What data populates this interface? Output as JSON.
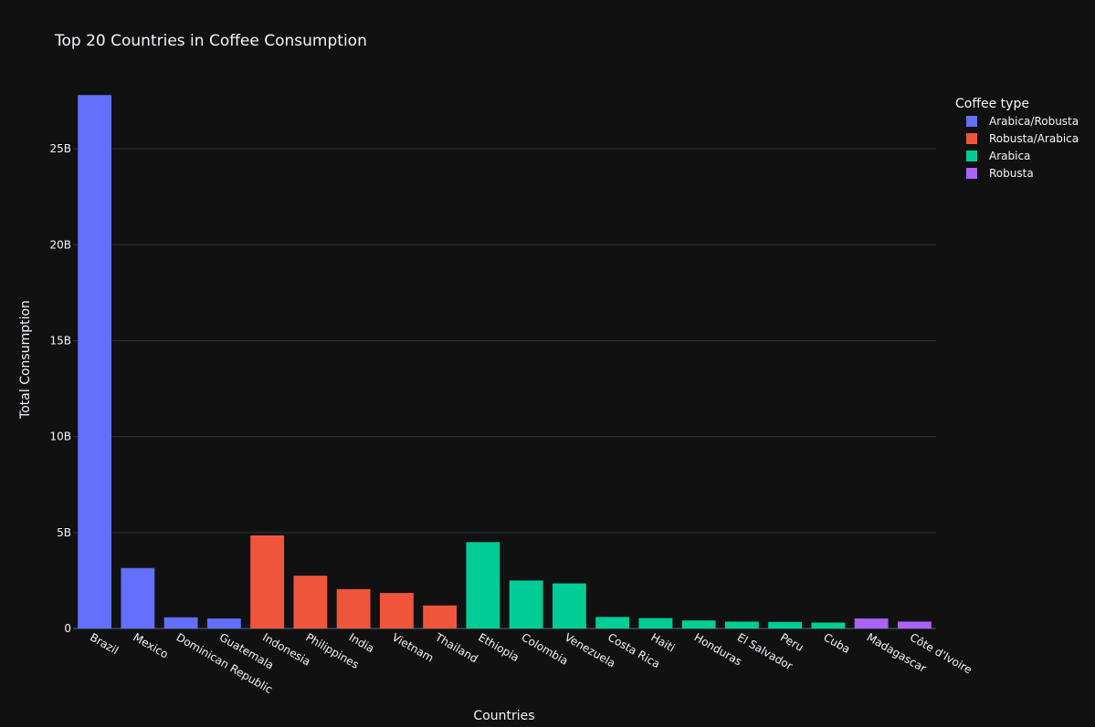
{
  "chart_data": {
    "type": "bar",
    "title": "Top 20 Countries in Coffee Consumption",
    "xlabel": "Countries",
    "ylabel": "Total Consumption",
    "ylim": [
      0,
      28000000000
    ],
    "yticks": [
      0,
      5000000000,
      10000000000,
      15000000000,
      20000000000,
      25000000000
    ],
    "ytick_labels": [
      "0",
      "5B",
      "10B",
      "15B",
      "20B",
      "25B"
    ],
    "legend_title": "Coffee type",
    "legend_position": "top-right",
    "grid": true,
    "categories": [
      "Brazil",
      "Mexico",
      "Dominican Republic",
      "Guatemala",
      "Indonesia",
      "Philippines",
      "India",
      "Vietnam",
      "Thailand",
      "Ethiopia",
      "Colombia",
      "Venezuela",
      "Costa Rica",
      "Haiti",
      "Honduras",
      "El Salvador",
      "Peru",
      "Cuba",
      "Madagascar",
      "Côte d'Ivoire"
    ],
    "series": [
      {
        "name": "Arabica/Robusta",
        "color": "#636efa",
        "points": [
          {
            "category": "Brazil",
            "value": 27800000000
          },
          {
            "category": "Mexico",
            "value": 3150000000
          },
          {
            "category": "Dominican Republic",
            "value": 580000000
          },
          {
            "category": "Guatemala",
            "value": 520000000
          }
        ]
      },
      {
        "name": "Robusta/Arabica",
        "color": "#ef553b",
        "points": [
          {
            "category": "Indonesia",
            "value": 4850000000
          },
          {
            "category": "Philippines",
            "value": 2750000000
          },
          {
            "category": "India",
            "value": 2050000000
          },
          {
            "category": "Vietnam",
            "value": 1850000000
          },
          {
            "category": "Thailand",
            "value": 1200000000
          }
        ]
      },
      {
        "name": "Arabica",
        "color": "#00cc96",
        "points": [
          {
            "category": "Ethiopia",
            "value": 4500000000
          },
          {
            "category": "Colombia",
            "value": 2500000000
          },
          {
            "category": "Venezuela",
            "value": 2350000000
          },
          {
            "category": "Costa Rica",
            "value": 600000000
          },
          {
            "category": "Haiti",
            "value": 540000000
          },
          {
            "category": "Honduras",
            "value": 420000000
          },
          {
            "category": "El Salvador",
            "value": 360000000
          },
          {
            "category": "Peru",
            "value": 340000000
          },
          {
            "category": "Cuba",
            "value": 310000000
          }
        ]
      },
      {
        "name": "Robusta",
        "color": "#ab63fa",
        "points": [
          {
            "category": "Madagascar",
            "value": 520000000
          },
          {
            "category": "Côte d'Ivoire",
            "value": 360000000
          }
        ]
      }
    ]
  }
}
